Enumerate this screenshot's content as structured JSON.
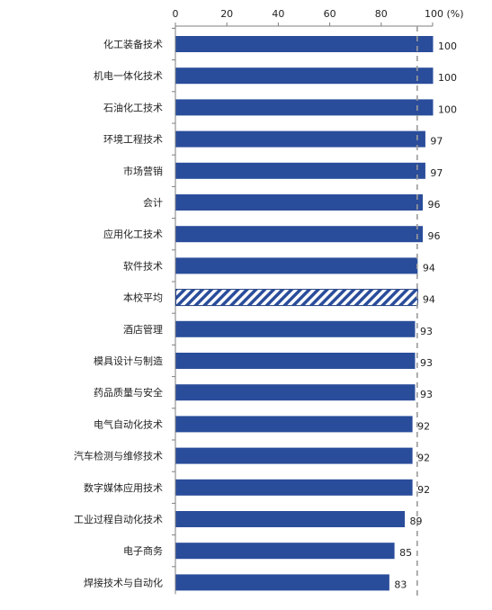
{
  "chart_data": {
    "type": "bar",
    "orientation": "horizontal",
    "categories": [
      "化工装备技术",
      "机电一体化技术",
      "石油化工技术",
      "环境工程技术",
      "市场营销",
      "会计",
      "应用化工技术",
      "软件技术",
      "本校平均",
      "酒店管理",
      "模具设计与制造",
      "药品质量与安全",
      "电气自动化技术",
      "汽车检测与维修技术",
      "数字媒体应用技术",
      "工业过程自动化技术",
      "电子商务",
      "焊接技术与自动化"
    ],
    "values": [
      100,
      100,
      100,
      97,
      97,
      96,
      96,
      94,
      94,
      93,
      93,
      93,
      92,
      92,
      92,
      89,
      85,
      83
    ],
    "highlight_category": "本校平均",
    "xlim": [
      0,
      100
    ],
    "x_ticks": [
      0,
      20,
      40,
      60,
      80,
      100
    ],
    "x_tick_labels": [
      "0",
      "20",
      "40",
      "60",
      "80",
      "100 (%)"
    ],
    "reference_line_value": 94,
    "axis_position": "top",
    "grid": false,
    "legend": "none",
    "colors": {
      "bar": "#2a4d9b",
      "bar_stroke": "#1f3c7e",
      "highlight_hatch": "#2a4d9b",
      "highlight_bg": "#ffffff",
      "axis": "#7f7f7f",
      "reference_line": "#9a9a9a"
    }
  }
}
